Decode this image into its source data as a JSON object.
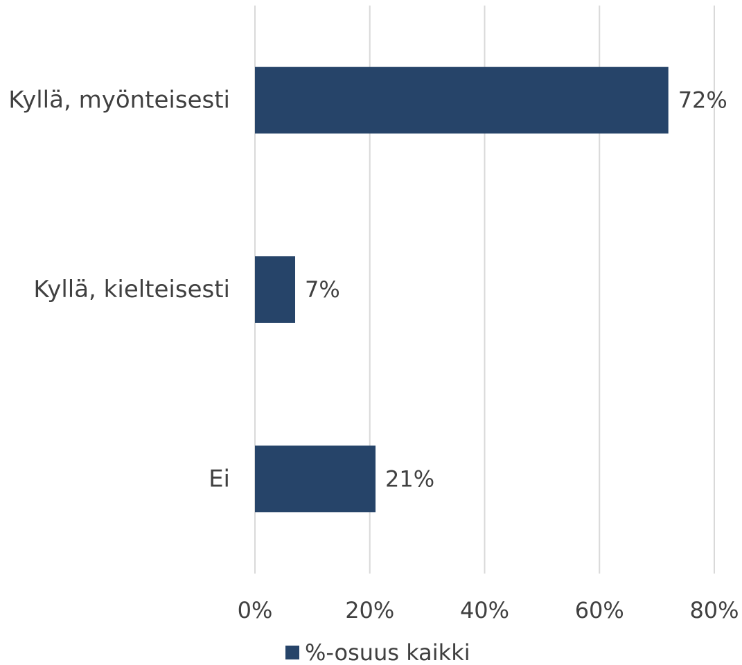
{
  "chart_data": {
    "type": "bar",
    "orientation": "horizontal",
    "categories": [
      "Kyllä, myönteisesti",
      "Kyllä, kielteisesti",
      "Ei"
    ],
    "series": [
      {
        "name": "%-osuus kaikki",
        "values": [
          72,
          7,
          21
        ],
        "data_labels": [
          "72%",
          "7%",
          "21%"
        ],
        "color": "#264469"
      }
    ],
    "xlim": [
      0,
      80
    ],
    "ticks": [
      0,
      20,
      40,
      60,
      80
    ],
    "tick_labels": [
      "0%",
      "20%",
      "40%",
      "60%",
      "80%"
    ],
    "grid": true,
    "legend": {
      "position": "bottom",
      "entries": [
        "%-osuus kaikki"
      ]
    },
    "title": "",
    "xlabel": "",
    "ylabel": ""
  }
}
